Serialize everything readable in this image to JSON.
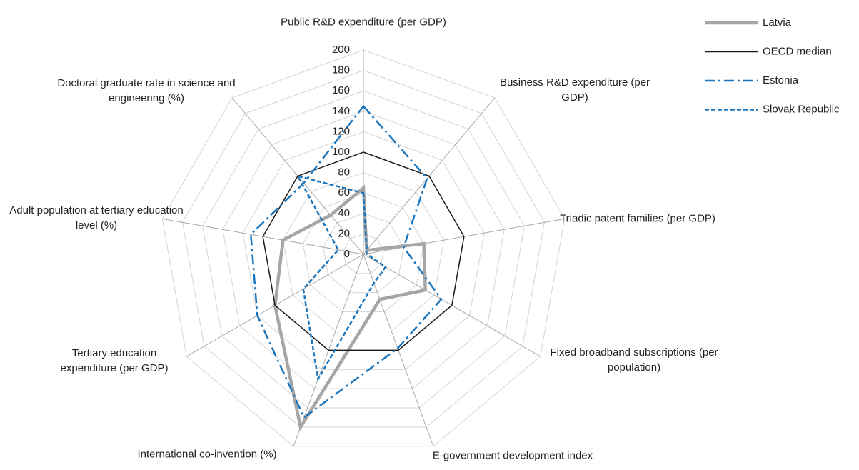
{
  "chart_data": {
    "type": "radar",
    "categories": [
      "Public R&D expenditure (per GDP)",
      "Business R&D expenditure (per GDP)",
      "Triadic patent families (per GDP)",
      "Fixed broadband subscriptions (per population)",
      "E-government development index",
      "International co-invention (%)",
      "Tertiary education expenditure (per GDP)",
      "Adult population at tertiary education level (%)",
      "Doctoral graduate rate in science and engineering (%)"
    ],
    "series": [
      {
        "name": "Latvia",
        "color": "#a6a6a6",
        "style": "solid-thick",
        "values": [
          65,
          5,
          60,
          70,
          47,
          180,
          100,
          80,
          50
        ]
      },
      {
        "name": "OECD median",
        "color": "#1a1a1a",
        "style": "solid",
        "values": [
          100,
          100,
          100,
          100,
          100,
          100,
          100,
          100,
          100
        ]
      },
      {
        "name": "Estonia",
        "color": "#1a75bc",
        "style": "dash-dot",
        "values": [
          145,
          97,
          40,
          88,
          98,
          170,
          120,
          112,
          91
        ]
      },
      {
        "name": "Slovak Republic",
        "color": "#1a75bc",
        "style": "dashed",
        "values": [
          60,
          5,
          3,
          25,
          30,
          130,
          68,
          25,
          100
        ]
      }
    ],
    "ylim": [
      0,
      200
    ],
    "yticks": [
      0,
      20,
      40,
      60,
      80,
      100,
      120,
      140,
      160,
      180,
      200
    ],
    "grid": true,
    "legend": "top-right"
  }
}
